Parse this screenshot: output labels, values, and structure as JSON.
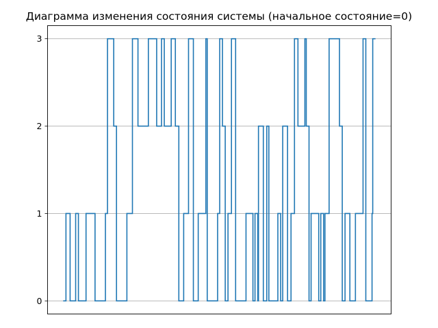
{
  "chart_data": {
    "type": "line",
    "step": "post",
    "title": "Диаграмма изменения состояния системы (начальное состояние=0)",
    "xlabel": "",
    "ylabel": "",
    "x_ticks_visible": false,
    "ylim": [
      -0.15,
      3.15
    ],
    "yticks": [
      0,
      1,
      2,
      3
    ],
    "ytick_labels": [
      "0",
      "1",
      "2",
      "3"
    ],
    "grid": "y",
    "legend": "none",
    "series": [
      {
        "color": "#1f77b4",
        "x": [
          0,
          4,
          10,
          18,
          22,
          33,
          46,
          61,
          64,
          73,
          77,
          92,
          100,
          108,
          123,
          135,
          142,
          146,
          156,
          162,
          167,
          174,
          181,
          188,
          195,
          206,
          208,
          223,
          226,
          230,
          234,
          238,
          243,
          249,
          264,
          274,
          277,
          281,
          282,
          289,
          294,
          297,
          310,
          314,
          317,
          324,
          329,
          334,
          339,
          349,
          351,
          355,
          358,
          369,
          372,
          376,
          378,
          384,
          399,
          403,
          407,
          414,
          422,
          433,
          437,
          446,
          447,
          451
        ],
        "y": [
          0,
          1,
          0,
          1,
          0,
          1,
          0,
          1,
          3,
          2,
          0,
          1,
          3,
          2,
          3,
          2,
          3,
          2,
          3,
          2,
          0,
          1,
          3,
          0,
          1,
          3,
          0,
          1,
          3,
          2,
          0,
          1,
          3,
          0,
          1,
          0,
          1,
          0,
          2,
          0,
          2,
          0,
          1,
          0,
          2,
          0,
          1,
          3,
          2,
          3,
          2,
          0,
          1,
          0,
          1,
          0,
          1,
          3,
          2,
          0,
          1,
          0,
          1,
          3,
          0,
          1,
          3,
          3
        ]
      }
    ]
  }
}
